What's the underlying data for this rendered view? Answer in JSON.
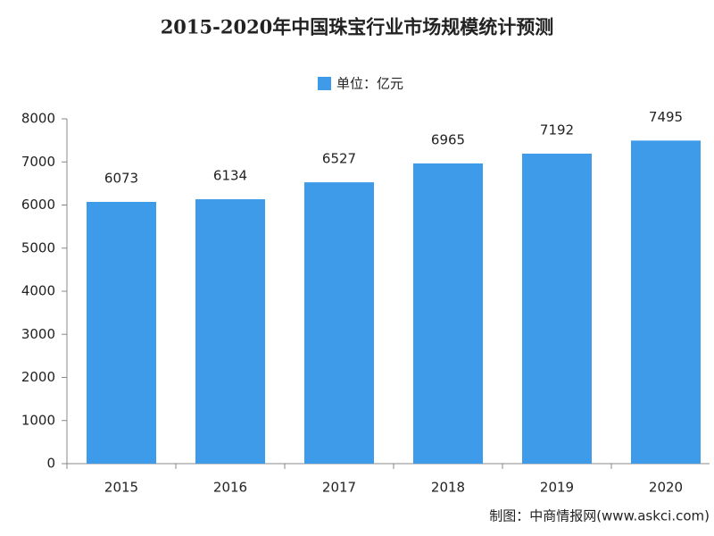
{
  "chart_data": {
    "type": "bar",
    "title": "2015-2020年中国珠宝行业市场规模统计预测",
    "legend": "单位：亿元",
    "source": "制图：中商情报网(www.askci.com)",
    "categories": [
      "2015",
      "2016",
      "2017",
      "2018",
      "2019",
      "2020"
    ],
    "values": [
      6073,
      6134,
      6527,
      6965,
      7192,
      7495
    ],
    "color": "#3d9be9",
    "ylim": [
      0,
      8000
    ],
    "yticks": [
      0,
      1000,
      2000,
      3000,
      4000,
      5000,
      6000,
      7000,
      8000
    ],
    "grid": false
  }
}
